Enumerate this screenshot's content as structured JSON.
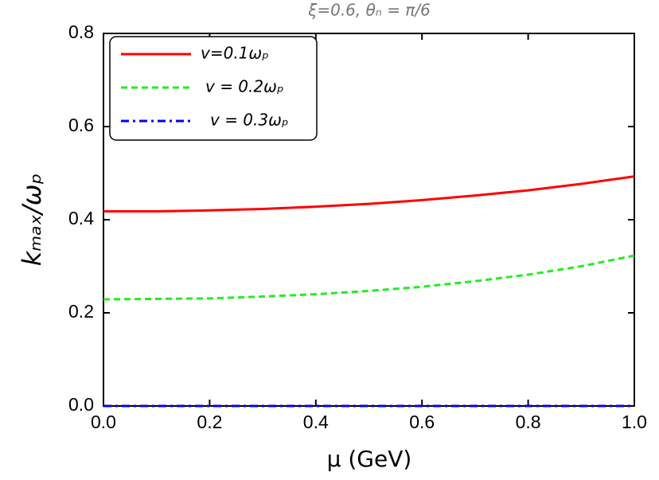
{
  "chart_data": {
    "type": "line",
    "title": "ξ=0.6, θₙ = π/6",
    "x_label": "μ (GeV)",
    "y_label": "kₘₐₓ/ωₚ",
    "x": [
      0,
      0.1,
      0.2,
      0.3,
      0.4,
      0.5,
      0.6,
      0.7,
      0.8,
      0.9,
      1.0
    ],
    "series": [
      {
        "name": "v=0.1ωₚ",
        "color": "#ff0000",
        "dash": "solid",
        "values": [
          0.418,
          0.418,
          0.42,
          0.423,
          0.428,
          0.434,
          0.442,
          0.452,
          0.463,
          0.477,
          0.493
        ]
      },
      {
        "name": "v = 0.2ωₚ",
        "color": "#22ee22",
        "dash": "dash",
        "values": [
          0.229,
          0.23,
          0.231,
          0.235,
          0.24,
          0.247,
          0.256,
          0.268,
          0.282,
          0.3,
          0.323
        ]
      },
      {
        "name": "v = 0.3ωₚ",
        "color": "#0000ff",
        "dash": "dashdot",
        "values": [
          0,
          0,
          0,
          0,
          0,
          0,
          0,
          0,
          0,
          0,
          0
        ]
      }
    ],
    "xlim": [
      0,
      1.0
    ],
    "xticks": [
      {
        "value": 0,
        "label": "0.0"
      },
      0.2,
      0.4,
      0.6,
      0.8,
      {
        "value": 1.0,
        "label": "1.0"
      }
    ],
    "ylim": [
      0,
      0.8
    ],
    "yticks": [
      {
        "value": 0,
        "label": "0.0"
      },
      0.2,
      0.4,
      0.6,
      0.8
    ],
    "legend": "upper left"
  }
}
